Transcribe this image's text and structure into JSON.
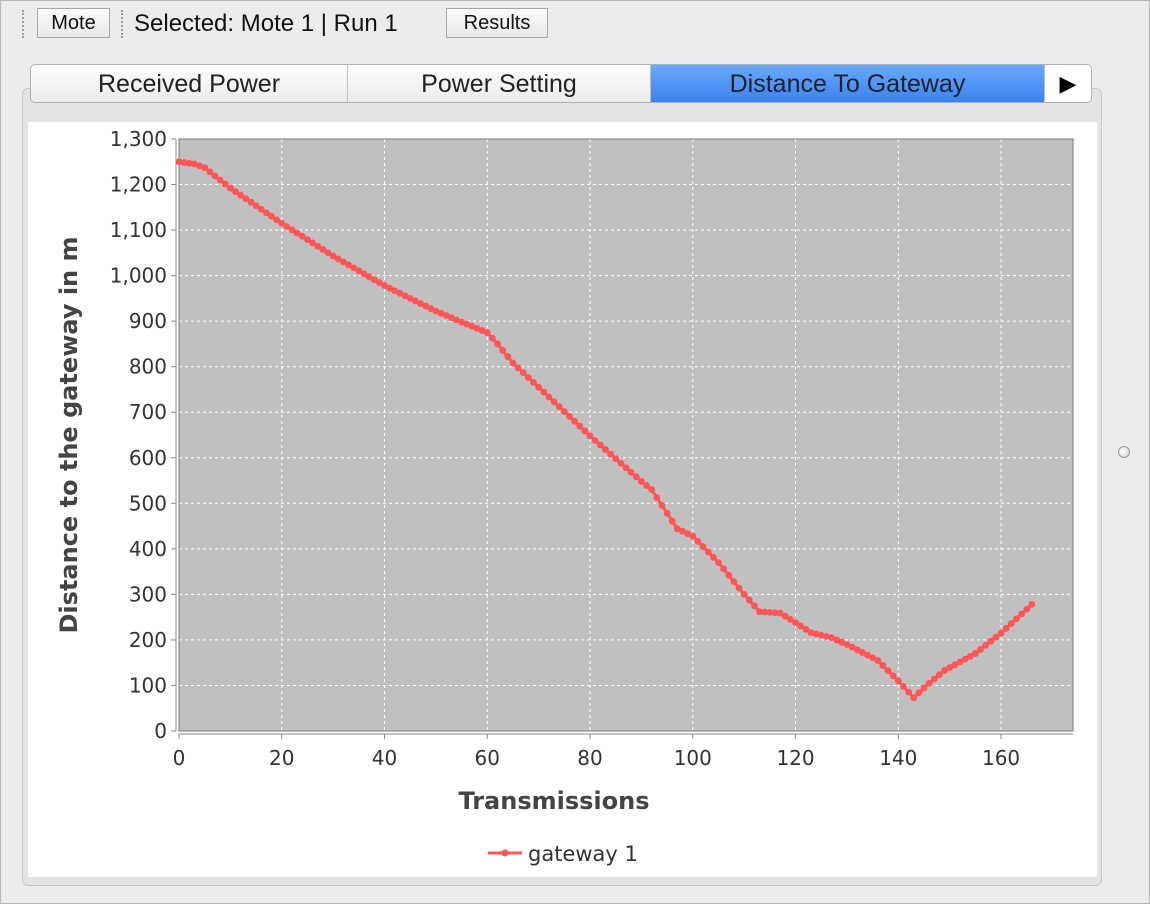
{
  "toolbar": {
    "mote_button": "Mote",
    "selected_text": "Selected: Mote 1 | Run 1",
    "results_button": "Results"
  },
  "tabs": [
    {
      "label": "Received Power",
      "active": false
    },
    {
      "label": "Power Setting",
      "active": false
    },
    {
      "label": "Distance To Gateway",
      "active": true
    }
  ],
  "tab_scroll_icon": "play-right-arrow-icon",
  "colors": {
    "accent_tab": "#4a8ff3",
    "series": "#ff5555",
    "plot_bg": "#c0c0c0"
  },
  "chart_data": {
    "type": "line",
    "xlabel": "Transmissions",
    "ylabel": "Distance to the gateway in  m",
    "xlim": [
      0,
      174
    ],
    "ylim": [
      0,
      1300
    ],
    "x_ticks": [
      0,
      20,
      40,
      60,
      80,
      100,
      120,
      140,
      160
    ],
    "y_ticks": [
      0,
      100,
      200,
      300,
      400,
      500,
      600,
      700,
      800,
      900,
      1000,
      1100,
      1200,
      1300
    ],
    "y_tick_labels": [
      "0",
      "100",
      "200",
      "300",
      "400",
      "500",
      "600",
      "700",
      "800",
      "900",
      "1,000",
      "1,100",
      "1,200",
      "1,300"
    ],
    "grid": true,
    "legend_position": "bottom-center",
    "series": [
      {
        "name": "gateway 1",
        "color": "#ff5555",
        "points": [
          [
            0,
            1250
          ],
          [
            3,
            1245
          ],
          [
            5,
            1237
          ],
          [
            10,
            1192
          ],
          [
            20,
            1115
          ],
          [
            30,
            1043
          ],
          [
            40,
            978
          ],
          [
            50,
            922
          ],
          [
            55,
            898
          ],
          [
            60,
            875
          ],
          [
            62,
            850
          ],
          [
            65,
            808
          ],
          [
            70,
            755
          ],
          [
            80,
            648
          ],
          [
            90,
            548
          ],
          [
            92,
            530
          ],
          [
            95,
            478
          ],
          [
            97,
            444
          ],
          [
            100,
            428
          ],
          [
            105,
            370
          ],
          [
            110,
            300
          ],
          [
            113,
            262
          ],
          [
            117,
            259
          ],
          [
            120,
            238
          ],
          [
            123,
            216
          ],
          [
            127,
            205
          ],
          [
            130,
            190
          ],
          [
            136,
            155
          ],
          [
            140,
            110
          ],
          [
            143,
            73
          ],
          [
            146,
            105
          ],
          [
            149,
            133
          ],
          [
            155,
            170
          ],
          [
            160,
            215
          ],
          [
            166,
            278
          ]
        ]
      }
    ]
  }
}
